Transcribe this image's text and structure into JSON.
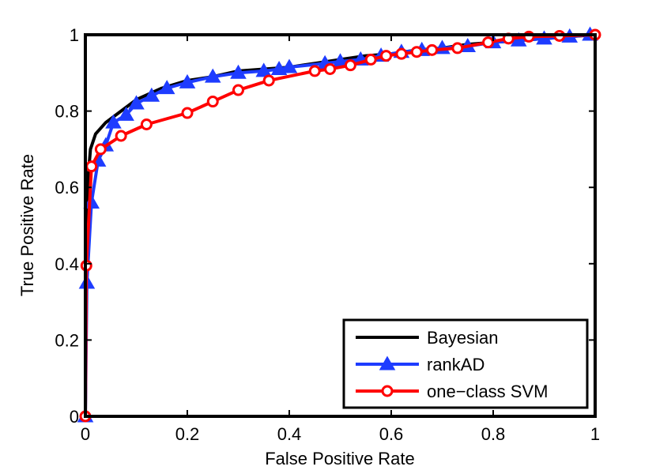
{
  "chart_data": {
    "type": "line",
    "title": "",
    "xlabel": "False Positive Rate",
    "ylabel": "True Positive Rate",
    "xlim": [
      0,
      1
    ],
    "ylim": [
      0,
      1
    ],
    "xticks": [
      "0",
      "0.2",
      "0.4",
      "0.6",
      "0.8",
      "1"
    ],
    "yticks": [
      "0",
      "0.2",
      "0.4",
      "0.6",
      "0.8",
      "1"
    ],
    "grid": false,
    "legend_position": "bottom-right",
    "series": [
      {
        "name": "Bayesian",
        "color": "#000000",
        "marker": "none",
        "points": [
          [
            0,
            0
          ],
          [
            0.002,
            0.45
          ],
          [
            0.005,
            0.62
          ],
          [
            0.01,
            0.7
          ],
          [
            0.02,
            0.74
          ],
          [
            0.04,
            0.77
          ],
          [
            0.07,
            0.8
          ],
          [
            0.1,
            0.83
          ],
          [
            0.15,
            0.86
          ],
          [
            0.2,
            0.88
          ],
          [
            0.25,
            0.89
          ],
          [
            0.3,
            0.905
          ],
          [
            0.35,
            0.91
          ],
          [
            0.4,
            0.915
          ],
          [
            0.45,
            0.925
          ],
          [
            0.5,
            0.935
          ],
          [
            0.55,
            0.945
          ],
          [
            0.6,
            0.95
          ],
          [
            0.65,
            0.96
          ],
          [
            0.7,
            0.965
          ],
          [
            0.75,
            0.975
          ],
          [
            0.8,
            0.98
          ],
          [
            0.85,
            0.985
          ],
          [
            0.9,
            0.99
          ],
          [
            0.95,
            0.995
          ],
          [
            1,
            1
          ]
        ]
      },
      {
        "name": "rankAD",
        "color": "#1e3cff",
        "marker": "triangle",
        "points": [
          [
            0,
            0
          ],
          [
            0.003,
            0.35
          ],
          [
            0.012,
            0.56
          ],
          [
            0.025,
            0.67
          ],
          [
            0.04,
            0.71
          ],
          [
            0.055,
            0.77
          ],
          [
            0.08,
            0.79
          ],
          [
            0.1,
            0.82
          ],
          [
            0.13,
            0.84
          ],
          [
            0.16,
            0.86
          ],
          [
            0.2,
            0.875
          ],
          [
            0.25,
            0.89
          ],
          [
            0.3,
            0.9
          ],
          [
            0.35,
            0.905
          ],
          [
            0.38,
            0.91
          ],
          [
            0.4,
            0.915
          ],
          [
            0.47,
            0.925
          ],
          [
            0.5,
            0.93
          ],
          [
            0.54,
            0.935
          ],
          [
            0.58,
            0.945
          ],
          [
            0.62,
            0.955
          ],
          [
            0.66,
            0.96
          ],
          [
            0.7,
            0.965
          ],
          [
            0.75,
            0.97
          ],
          [
            0.8,
            0.98
          ],
          [
            0.85,
            0.985
          ],
          [
            0.9,
            0.99
          ],
          [
            0.95,
            0.995
          ],
          [
            0.99,
            1
          ]
        ]
      },
      {
        "name": "one−class SVM",
        "color": "#ff0000",
        "marker": "circle",
        "points": [
          [
            0,
            0
          ],
          [
            0.002,
            0.395
          ],
          [
            0.012,
            0.655
          ],
          [
            0.03,
            0.7
          ],
          [
            0.07,
            0.735
          ],
          [
            0.12,
            0.765
          ],
          [
            0.2,
            0.795
          ],
          [
            0.25,
            0.825
          ],
          [
            0.3,
            0.855
          ],
          [
            0.36,
            0.88
          ],
          [
            0.45,
            0.905
          ],
          [
            0.48,
            0.91
          ],
          [
            0.52,
            0.92
          ],
          [
            0.56,
            0.935
          ],
          [
            0.59,
            0.945
          ],
          [
            0.62,
            0.95
          ],
          [
            0.65,
            0.955
          ],
          [
            0.68,
            0.96
          ],
          [
            0.73,
            0.965
          ],
          [
            0.79,
            0.98
          ],
          [
            0.83,
            0.99
          ],
          [
            0.87,
            0.995
          ],
          [
            0.93,
            0.997
          ],
          [
            1,
            1
          ]
        ]
      }
    ]
  }
}
